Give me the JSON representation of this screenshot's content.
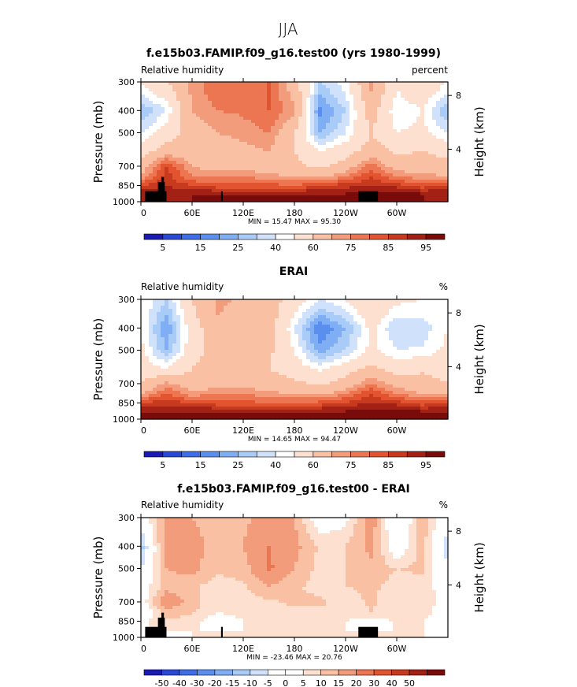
{
  "figure": {
    "title": "JJA"
  },
  "colors": {
    "rh_levels": [
      "#1a1ab4",
      "#2a48d6",
      "#3d6ee8",
      "#5a8eef",
      "#80aef4",
      "#a9cbf8",
      "#d0e2fb",
      "#ffffff",
      "#fde0cf",
      "#f9c0a4",
      "#f39c7c",
      "#ec7652",
      "#e2542f",
      "#c83a1e",
      "#a32014",
      "#7a0b0b"
    ],
    "diff_levels": [
      "#1a1ab4",
      "#2a48d6",
      "#3d6ee8",
      "#5a8eef",
      "#80aef4",
      "#a9cbf8",
      "#d0e2fb",
      "#ffffff",
      "#ffffff",
      "#fde0cf",
      "#f9c0a4",
      "#f39c7c",
      "#ec7652",
      "#e2542f",
      "#c83a1e",
      "#a32014",
      "#7a0b0b"
    ],
    "terrain": "#000000"
  },
  "chart_data": [
    {
      "type": "heatmap",
      "title": "f.e15b03.FAMIP.f09_g16.test00 (yrs 1980-1999)",
      "left_label": "Relative humidity",
      "right_label": "percent",
      "ylabel": "Pressure (mb)",
      "ylabel_right": "Height (km)",
      "y_ticks": [
        "300",
        "400",
        "500",
        "700",
        "850",
        "1000"
      ],
      "y_tick_values": [
        300,
        400,
        500,
        700,
        850,
        1000
      ],
      "height_ticks": [
        "8",
        "4"
      ],
      "height_tick_values": [
        8,
        4
      ],
      "x_ticks": [
        "0",
        "60E",
        "120E",
        "180",
        "120W",
        "60W"
      ],
      "x_tick_values": [
        0,
        60,
        120,
        180,
        240,
        300
      ],
      "xlim": [
        0,
        360
      ],
      "ylim": [
        1000,
        300
      ],
      "min_label": "MIN =   15.47   MAX =   95.30",
      "colorbar_labels": [
        "5",
        "15",
        "25",
        "40",
        "60",
        "75",
        "85",
        "95"
      ],
      "colorbar_label_boundaries": [
        1,
        3,
        5,
        7,
        9,
        11,
        13,
        15
      ],
      "palette": "rh_levels",
      "contour_levels": [
        5,
        10,
        15,
        20,
        25,
        30,
        35,
        40,
        50,
        60,
        65,
        70,
        75,
        80,
        85,
        90,
        95
      ],
      "grid_lon": [
        0,
        30,
        60,
        90,
        120,
        150,
        180,
        210,
        240,
        270,
        300,
        330,
        360
      ],
      "grid_p": [
        300,
        400,
        500,
        600,
        700,
        775,
        850,
        925,
        1000
      ],
      "values": [
        [
          40,
          50,
          62,
          70,
          66,
          70,
          55,
          30,
          38,
          62,
          42,
          48,
          40
        ],
        [
          25,
          35,
          60,
          65,
          66,
          70,
          62,
          18,
          30,
          55,
          35,
          40,
          25
        ],
        [
          35,
          45,
          55,
          60,
          62,
          65,
          50,
          25,
          35,
          50,
          40,
          42,
          35
        ],
        [
          45,
          55,
          55,
          55,
          58,
          60,
          50,
          40,
          45,
          55,
          48,
          50,
          45
        ],
        [
          55,
          75,
          60,
          55,
          56,
          55,
          52,
          48,
          55,
          68,
          55,
          56,
          55
        ],
        [
          60,
          78,
          65,
          65,
          65,
          62,
          60,
          58,
          65,
          75,
          65,
          62,
          60
        ],
        [
          75,
          80,
          75,
          72,
          72,
          72,
          70,
          75,
          78,
          80,
          78,
          72,
          75
        ],
        [
          85,
          85,
          85,
          85,
          85,
          85,
          85,
          85,
          85,
          88,
          88,
          85,
          85
        ],
        [
          82,
          80,
          85,
          85,
          85,
          85,
          85,
          85,
          85,
          85,
          85,
          85,
          82
        ]
      ],
      "terrain_columns": [
        {
          "lon": [
            5,
            30
          ],
          "top_p": 900
        },
        {
          "lon": [
            20,
            28
          ],
          "top_p": 820
        },
        {
          "lon": [
            24,
            27
          ],
          "top_p": 780
        },
        {
          "lon": [
            94,
            96
          ],
          "top_p": 900
        },
        {
          "lon": [
            255,
            278
          ],
          "top_p": 900
        }
      ]
    },
    {
      "type": "heatmap",
      "title": "ERAI",
      "left_label": "Relative humidity",
      "right_label": "%",
      "ylabel": "Pressure (mb)",
      "ylabel_right": "Height (km)",
      "y_ticks": [
        "300",
        "400",
        "500",
        "700",
        "850",
        "1000"
      ],
      "y_tick_values": [
        300,
        400,
        500,
        700,
        850,
        1000
      ],
      "height_ticks": [
        "8",
        "4"
      ],
      "height_tick_values": [
        8,
        4
      ],
      "x_ticks": [
        "0",
        "60E",
        "120E",
        "180",
        "120W",
        "60W"
      ],
      "x_tick_values": [
        0,
        60,
        120,
        180,
        240,
        300
      ],
      "xlim": [
        0,
        360
      ],
      "ylim": [
        1000,
        300
      ],
      "min_label": "MIN =   14.65   MAX =   94.47",
      "colorbar_labels": [
        "5",
        "15",
        "25",
        "40",
        "60",
        "75",
        "85",
        "95"
      ],
      "colorbar_label_boundaries": [
        1,
        3,
        5,
        7,
        9,
        11,
        13,
        15
      ],
      "palette": "rh_levels",
      "contour_levels": [
        5,
        10,
        15,
        20,
        25,
        30,
        35,
        40,
        50,
        60,
        65,
        70,
        75,
        80,
        85,
        90,
        95
      ],
      "grid_lon": [
        0,
        30,
        60,
        90,
        120,
        150,
        180,
        210,
        240,
        270,
        300,
        330,
        360
      ],
      "grid_p": [
        300,
        400,
        500,
        600,
        700,
        775,
        850,
        925,
        1000
      ],
      "values": [
        [
          40,
          30,
          50,
          62,
          58,
          55,
          45,
          35,
          40,
          50,
          42,
          40,
          40
        ],
        [
          40,
          20,
          45,
          58,
          56,
          55,
          35,
          15,
          25,
          42,
          30,
          32,
          40
        ],
        [
          42,
          25,
          45,
          55,
          55,
          52,
          40,
          22,
          30,
          42,
          35,
          36,
          42
        ],
        [
          45,
          40,
          50,
          55,
          55,
          50,
          45,
          38,
          45,
          52,
          45,
          48,
          45
        ],
        [
          50,
          62,
          55,
          56,
          56,
          55,
          52,
          48,
          55,
          65,
          56,
          55,
          50
        ],
        [
          60,
          70,
          62,
          65,
          65,
          62,
          60,
          58,
          65,
          75,
          65,
          60,
          60
        ],
        [
          75,
          78,
          75,
          72,
          72,
          70,
          70,
          72,
          76,
          80,
          78,
          72,
          75
        ],
        [
          85,
          85,
          85,
          85,
          85,
          85,
          85,
          85,
          85,
          88,
          88,
          85,
          85
        ],
        [
          85,
          85,
          85,
          85,
          85,
          85,
          85,
          85,
          85,
          85,
          85,
          85,
          85
        ]
      ]
    },
    {
      "type": "heatmap",
      "title": "f.e15b03.FAMIP.f09_g16.test00 - ERAI",
      "left_label": "Relative humidity",
      "right_label": "%",
      "ylabel": "Pressure (mb)",
      "ylabel_right": "Height (km)",
      "y_ticks": [
        "300",
        "400",
        "500",
        "700",
        "850",
        "1000"
      ],
      "y_tick_values": [
        300,
        400,
        500,
        700,
        850,
        1000
      ],
      "height_ticks": [
        "8",
        "4"
      ],
      "height_tick_values": [
        8,
        4
      ],
      "x_ticks": [
        "0",
        "60E",
        "120E",
        "180",
        "120W",
        "60W"
      ],
      "x_tick_values": [
        0,
        60,
        120,
        180,
        240,
        300
      ],
      "xlim": [
        0,
        360
      ],
      "ylim": [
        1000,
        300
      ],
      "min_label": "MIN = -23.46   MAX =   20.76",
      "colorbar_labels": [
        "-50",
        "-40",
        "-30",
        "-20",
        "-15",
        "-10",
        "-5",
        "0",
        "5",
        "10",
        "15",
        "20",
        "30",
        "40",
        "50"
      ],
      "colorbar_label_boundaries": [
        1,
        2,
        3,
        4,
        5,
        6,
        7,
        8,
        9,
        10,
        11,
        12,
        13,
        14,
        15
      ],
      "palette": "diff_levels",
      "contour_levels": [
        -60,
        -50,
        -40,
        -30,
        -20,
        -15,
        -10,
        -5,
        0,
        5,
        10,
        15,
        20,
        30,
        40,
        50,
        60
      ],
      "grid_lon": [
        0,
        30,
        60,
        90,
        120,
        150,
        180,
        210,
        240,
        270,
        300,
        330,
        360
      ],
      "grid_p": [
        300,
        400,
        500,
        600,
        700,
        775,
        850,
        925,
        1000
      ],
      "values": [
        [
          -5,
          12,
          10,
          8,
          9,
          12,
          10,
          -5,
          -2,
          14,
          -10,
          8,
          -5
        ],
        [
          -18,
          15,
          12,
          8,
          10,
          15,
          12,
          4,
          5,
          12,
          -6,
          8,
          -15
        ],
        [
          -10,
          10,
          12,
          6,
          8,
          16,
          10,
          3,
          5,
          8,
          5,
          6,
          -8
        ],
        [
          -4,
          8,
          6,
          2,
          4,
          10,
          6,
          3,
          5,
          6,
          3,
          3,
          -4
        ],
        [
          -4,
          15,
          8,
          0,
          2,
          4,
          6,
          6,
          2,
          6,
          2,
          3,
          -2
        ],
        [
          -6,
          8,
          6,
          0,
          2,
          3,
          4,
          4,
          2,
          5,
          2,
          2,
          -4
        ],
        [
          -2,
          4,
          2,
          -4,
          0,
          0,
          3,
          2,
          0,
          -4,
          1,
          0,
          -2
        ],
        [
          0,
          0,
          0,
          0,
          0,
          0,
          0,
          0,
          0,
          0,
          0,
          0,
          0
        ],
        [
          -2,
          -5,
          0,
          0,
          0,
          0,
          0,
          0,
          0,
          0,
          0,
          0,
          -2
        ]
      ],
      "terrain_columns": [
        {
          "lon": [
            5,
            30
          ],
          "top_p": 900
        },
        {
          "lon": [
            20,
            28
          ],
          "top_p": 820
        },
        {
          "lon": [
            24,
            27
          ],
          "top_p": 780
        },
        {
          "lon": [
            94,
            96
          ],
          "top_p": 900
        },
        {
          "lon": [
            255,
            278
          ],
          "top_p": 900
        }
      ]
    }
  ]
}
